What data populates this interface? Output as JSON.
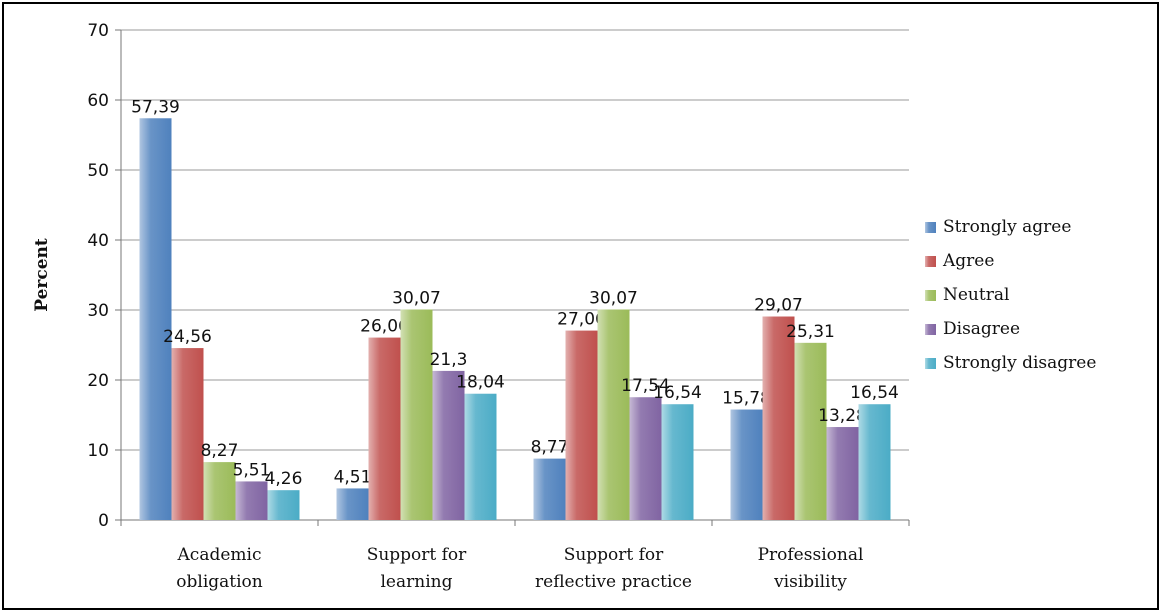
{
  "chart_data": {
    "type": "bar",
    "title": "",
    "xlabel": "",
    "ylabel": "Percent",
    "ylim": [
      0,
      70
    ],
    "yticks": [
      0,
      10,
      20,
      30,
      40,
      50,
      60,
      70
    ],
    "grid": true,
    "legend_position": "right",
    "categories": [
      [
        "Academic",
        "obligation"
      ],
      [
        "Support for",
        "learning"
      ],
      [
        "Support for",
        "reflective practice"
      ],
      [
        "Professional",
        "visibility"
      ]
    ],
    "series": [
      {
        "name": "Strongly agree",
        "color": "#4f81bd",
        "values": [
          57.39,
          4.51,
          8.77,
          15.78
        ],
        "labels": [
          "57,39",
          "4,51",
          "8,77",
          "15,78"
        ]
      },
      {
        "name": "Agree",
        "color": "#c0504d",
        "values": [
          24.56,
          26.06,
          27.06,
          29.07
        ],
        "labels": [
          "24,56",
          "26,06",
          "27,06",
          "29,07"
        ]
      },
      {
        "name": "Neutral",
        "color": "#9bbb59",
        "values": [
          8.27,
          30.07,
          30.07,
          25.31
        ],
        "labels": [
          "8,27",
          "30,07",
          "30,07",
          "25,31"
        ]
      },
      {
        "name": "Disagree",
        "color": "#8064a2",
        "values": [
          5.51,
          21.3,
          17.54,
          13.28
        ],
        "labels": [
          "5,51",
          "21,3",
          "17,54",
          "13,28"
        ]
      },
      {
        "name": "Strongly disagree",
        "color": "#4bacc6",
        "values": [
          4.26,
          18.04,
          16.54,
          16.54
        ],
        "labels": [
          "4,26",
          "18,04",
          "16,54",
          "16,54"
        ]
      }
    ]
  }
}
